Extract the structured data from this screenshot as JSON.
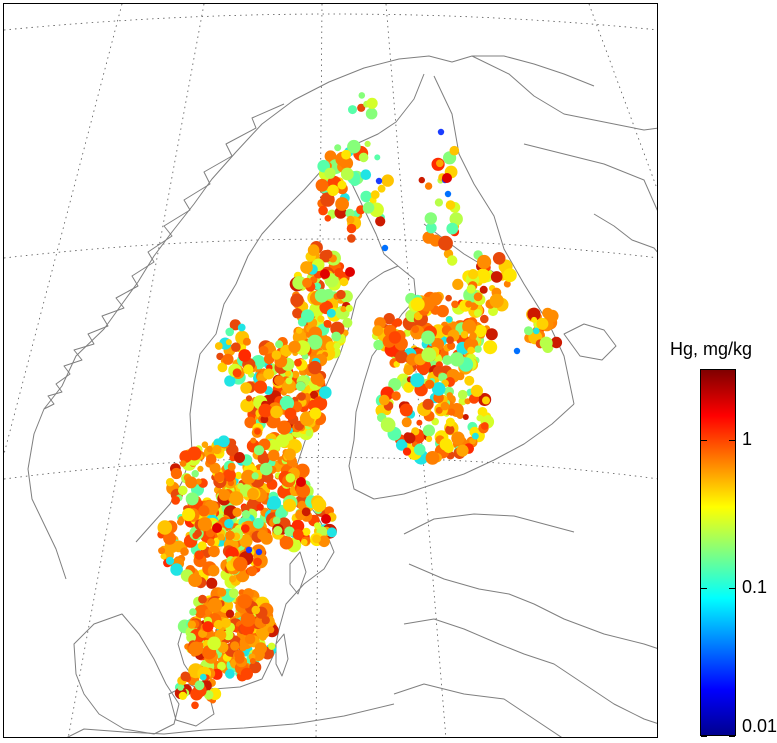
{
  "colorbar": {
    "title": "Hg, mg/kg",
    "scale": "log",
    "range": [
      0.01,
      3
    ],
    "colormap": "jet",
    "colors": [
      "#00008f",
      "#0000ff",
      "#0080ff",
      "#00ffff",
      "#80ff80",
      "#ffff00",
      "#ff8000",
      "#ff0000",
      "#800000"
    ],
    "ticks": [
      {
        "value": 0.01,
        "label": "0.01"
      },
      {
        "value": 0.1,
        "label": "0.1"
      },
      {
        "value": 1,
        "label": "1"
      }
    ]
  },
  "map": {
    "region": "Fennoscandia",
    "graticule": "dotted",
    "country_border_color": "#7f7f7f",
    "marker": "circle"
  }
}
